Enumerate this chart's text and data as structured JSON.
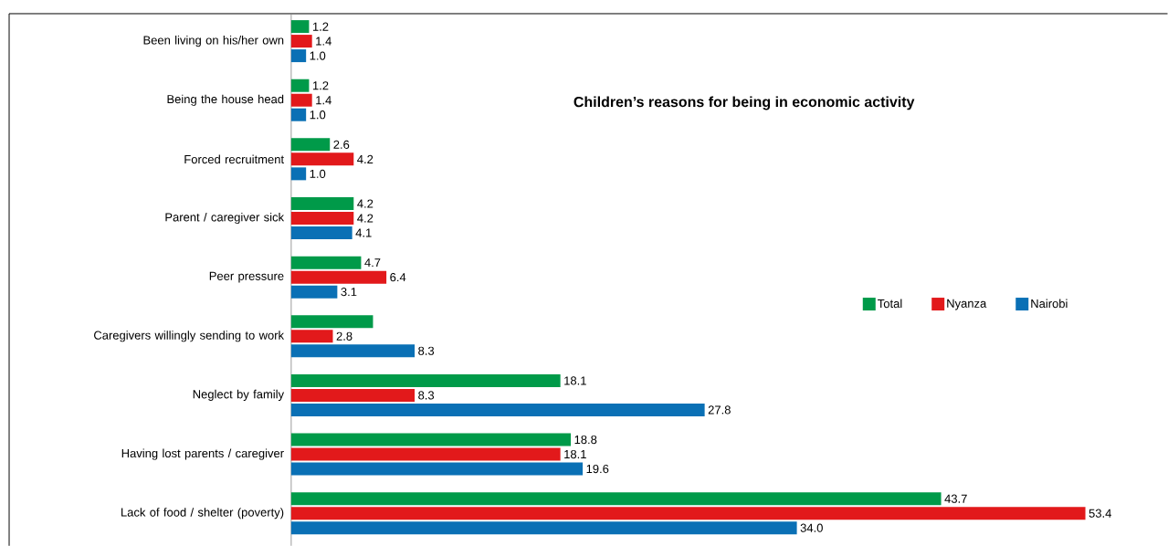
{
  "chart_data": {
    "type": "bar",
    "orientation": "horizontal",
    "title": "Children’s reasons for being in economic activity",
    "categories": [
      "Been living on his/her own",
      "Being the house head",
      "Forced recruitment",
      "Parent / caregiver sick",
      "Peer pressure",
      "Caregivers willingly sending to work",
      "Neglect by family",
      "Having lost parents / caregiver",
      "Lack of food / shelter (poverty)"
    ],
    "series": [
      {
        "name": "Total",
        "color": "#009a49",
        "values": [
          1.2,
          1.2,
          2.6,
          4.2,
          4.7,
          5.5,
          18.1,
          18.8,
          43.7
        ],
        "value_labels": [
          "1.2",
          "1.2",
          "2.6",
          "4.2",
          "4.7",
          null,
          "18.1",
          "18.8",
          "43.7"
        ]
      },
      {
        "name": "Nyanza",
        "color": "#e2191b",
        "values": [
          1.4,
          1.4,
          4.2,
          4.2,
          6.4,
          2.8,
          8.3,
          18.1,
          53.4
        ],
        "value_labels": [
          "1.4",
          "1.4",
          "4.2",
          "4.2",
          "6.4",
          "2.8",
          "8.3",
          "18.1",
          "53.4"
        ]
      },
      {
        "name": "Nairobi",
        "color": "#0a70b5",
        "values": [
          1.0,
          1.0,
          1.0,
          4.1,
          3.1,
          8.3,
          27.8,
          19.6,
          34.0
        ],
        "value_labels": [
          "1.0",
          "1.0",
          "1.0",
          "4.1",
          "3.1",
          "8.3",
          "27.8",
          "19.6",
          "34.0"
        ]
      }
    ],
    "legend": "right"
  }
}
